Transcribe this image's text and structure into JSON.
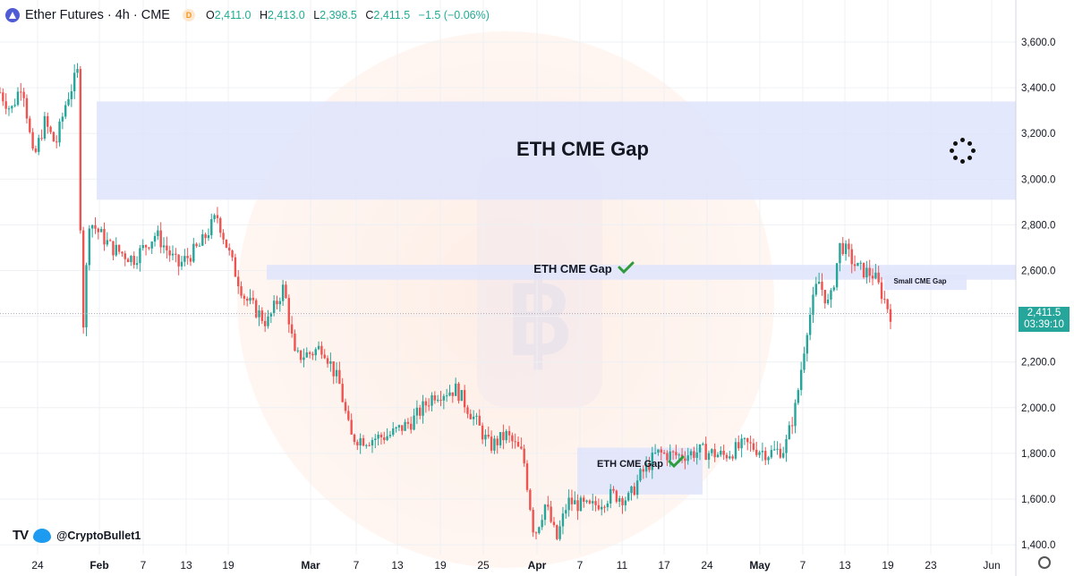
{
  "header": {
    "symbol_title": "Ether Futures · 4h · CME",
    "delayed_badge": "D",
    "ohlc": {
      "o_label": "O",
      "o": "2,411.0",
      "h_label": "H",
      "h": "2,413.0",
      "l_label": "L",
      "l": "2,398.5",
      "c_label": "C",
      "c": "2,411.5",
      "change": "−1.5 (−0.06%)"
    }
  },
  "watermark": {
    "handle": "@CryptoBullet1",
    "logo": "TV"
  },
  "last_price": {
    "value": "2,411.5",
    "countdown": "03:39:10"
  },
  "colors": {
    "up": "#26a69a",
    "down": "#ef5350",
    "gap_fill": "#dfe4fb",
    "accent": "#4f5bd5",
    "check": "#2e9c3a"
  },
  "icons": [
    "ethereum-icon",
    "delayed-badge-icon",
    "tradingview-logo-icon",
    "twitter-bird-icon",
    "settings-gear-icon",
    "loading-spinner-icon",
    "checkmark-icon",
    "bitcoin-watermark-icon"
  ],
  "chart_data": {
    "type": "candlestick",
    "instrument": "Ether Futures · 4h · CME",
    "y_axis": {
      "ticks": [
        3600,
        3400,
        3200,
        3000,
        2800,
        2600,
        2400,
        2200,
        2000,
        1800,
        1600,
        1400
      ],
      "tick_labels": [
        "3,600.0",
        "3,400.0",
        "3,200.0",
        "3,000.0",
        "2,800.0",
        "2,600.0",
        "2,400.0",
        "2,200.0",
        "2,000.0",
        "1,800.0",
        "1,600.0",
        "1,400.0"
      ],
      "ylim": [
        1380,
        3690
      ]
    },
    "x_axis": {
      "tick_labels": [
        "24",
        "Feb",
        "7",
        "13",
        "19",
        "Mar",
        "7",
        "13",
        "19",
        "25",
        "Apr",
        "7",
        "11",
        "17",
        "24",
        "May",
        "7",
        "13",
        "19",
        "23",
        "Jun"
      ],
      "bold_labels": [
        "Feb",
        "Mar",
        "Apr",
        "May"
      ]
    },
    "series_path": [
      {
        "t": 0,
        "p": 3380
      },
      {
        "t": 1,
        "p": 3300
      },
      {
        "t": 2,
        "p": 3430
      },
      {
        "t": 3,
        "p": 3080
      },
      {
        "t": 4,
        "p": 3250
      },
      {
        "t": 5,
        "p": 3150
      },
      {
        "t": 6,
        "p": 3350
      },
      {
        "t": 7,
        "p": 3470
      },
      {
        "t": 7.4,
        "p": 2290
      },
      {
        "t": 8,
        "p": 2820
      },
      {
        "t": 10,
        "p": 2700
      },
      {
        "t": 12,
        "p": 2650
      },
      {
        "t": 14,
        "p": 2760
      },
      {
        "t": 16,
        "p": 2620
      },
      {
        "t": 18,
        "p": 2710
      },
      {
        "t": 19.5,
        "p": 2840
      },
      {
        "t": 21,
        "p": 2610
      },
      {
        "t": 22,
        "p": 2480
      },
      {
        "t": 24,
        "p": 2370
      },
      {
        "t": 25.5,
        "p": 2530
      },
      {
        "t": 26.5,
        "p": 2220
      },
      {
        "t": 28,
        "p": 2240
      },
      {
        "t": 29,
        "p": 2270
      },
      {
        "t": 30.5,
        "p": 2100
      },
      {
        "t": 31.5,
        "p": 1870
      },
      {
        "t": 33,
        "p": 1860
      },
      {
        "t": 35,
        "p": 1880
      },
      {
        "t": 37,
        "p": 1940
      },
      {
        "t": 39,
        "p": 2060
      },
      {
        "t": 41,
        "p": 2080
      },
      {
        "t": 42.5,
        "p": 1960
      },
      {
        "t": 44,
        "p": 1830
      },
      {
        "t": 45.5,
        "p": 1880
      },
      {
        "t": 47,
        "p": 1790
      },
      {
        "t": 48,
        "p": 1440
      },
      {
        "t": 49,
        "p": 1580
      },
      {
        "t": 50,
        "p": 1420
      },
      {
        "t": 51,
        "p": 1590
      },
      {
        "t": 53,
        "p": 1560
      },
      {
        "t": 55,
        "p": 1620
      },
      {
        "t": 56.5,
        "p": 1600
      },
      {
        "t": 57.5,
        "p": 1700
      },
      {
        "t": 59,
        "p": 1800
      },
      {
        "t": 61,
        "p": 1790
      },
      {
        "t": 63,
        "p": 1810
      },
      {
        "t": 65,
        "p": 1790
      },
      {
        "t": 67,
        "p": 1840
      },
      {
        "t": 69,
        "p": 1800
      },
      {
        "t": 70.5,
        "p": 1820
      },
      {
        "t": 71.5,
        "p": 2010
      },
      {
        "t": 72.5,
        "p": 2350
      },
      {
        "t": 73.5,
        "p": 2560
      },
      {
        "t": 74.5,
        "p": 2440
      },
      {
        "t": 75.5,
        "p": 2720
      },
      {
        "t": 77,
        "p": 2610
      },
      {
        "t": 78.5,
        "p": 2580
      },
      {
        "t": 80,
        "p": 2410
      }
    ],
    "last_price": 2411.5,
    "zones": [
      {
        "label": "ETH CME Gap",
        "low": 2910,
        "high": 3340,
        "checked": false
      },
      {
        "label": "ETH CME Gap",
        "low": 2560,
        "high": 2625,
        "checked": true
      },
      {
        "label": "ETH CME Gap",
        "low": 1620,
        "high": 1825,
        "checked": true
      },
      {
        "label": "Small CME Gap",
        "low": 2515,
        "high": 2580,
        "checked": false
      }
    ]
  }
}
